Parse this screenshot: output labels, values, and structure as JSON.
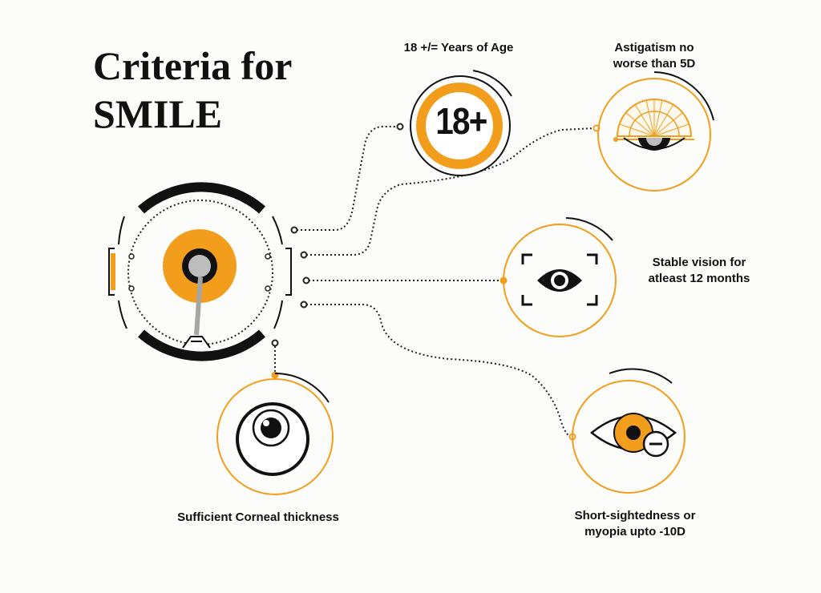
{
  "title": {
    "line1": "Criteria for",
    "line2": "SMILE"
  },
  "colors": {
    "accent": "#f29e1c",
    "dark": "#111111",
    "gray": "#9a9a9a",
    "background": "#fcfcfa"
  },
  "criteria": {
    "age": {
      "label": "18 +/= Years of Age",
      "badge": "18+",
      "icon": "age-18-plus-icon"
    },
    "astigmatism": {
      "label_line1": "Astigatism no",
      "label_line2": "worse than 5D",
      "icon": "protractor-eye-icon"
    },
    "stable_vision": {
      "label_line1": "Stable vision for",
      "label_line2": "atleast 12 months",
      "icon": "eye-focus-icon"
    },
    "myopia": {
      "label_line1": "Short-sightedness or",
      "label_line2": "myopia upto -10D",
      "icon": "eye-minus-icon"
    },
    "cornea": {
      "label": "Sufficient Corneal thickness",
      "icon": "cornea-eye-icon"
    }
  },
  "central_icon": "eye-examination-hub-icon"
}
